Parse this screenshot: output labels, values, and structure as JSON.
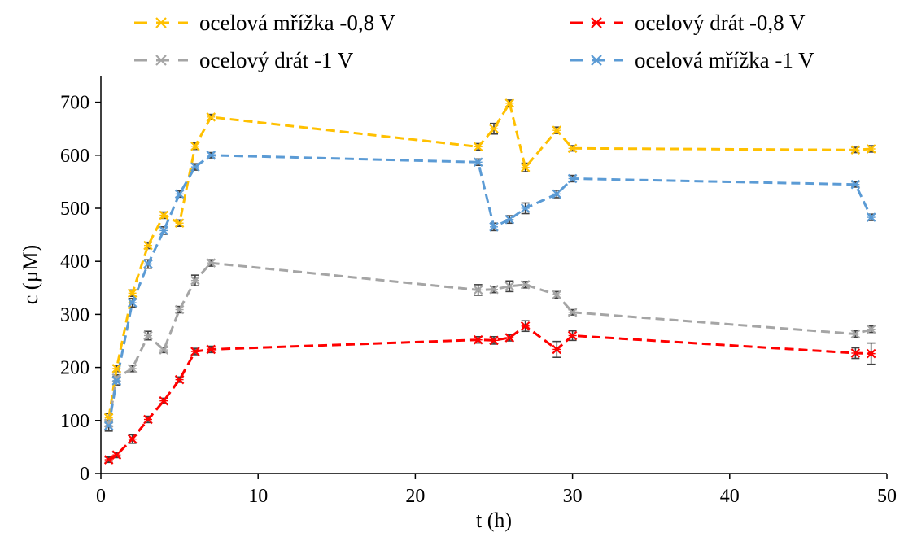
{
  "chart_data": {
    "type": "line",
    "xlabel": "t (h)",
    "ylabel": "c (µM)",
    "xlim": [
      0,
      50
    ],
    "ylim": [
      0,
      750
    ],
    "xticks": [
      0,
      10,
      20,
      30,
      40,
      50
    ],
    "yticks": [
      0,
      100,
      200,
      300,
      400,
      500,
      600,
      700
    ],
    "grid": false,
    "legend_position": "top",
    "series": [
      {
        "name": "ocelová mřížka -0,8 V",
        "color": "#FFC000",
        "points": [
          {
            "x": 0.5,
            "y": 105,
            "err": 8
          },
          {
            "x": 1,
            "y": 198,
            "err": 6
          },
          {
            "x": 2,
            "y": 340,
            "err": 6
          },
          {
            "x": 3,
            "y": 430,
            "err": 6
          },
          {
            "x": 4,
            "y": 487,
            "err": 6
          },
          {
            "x": 5,
            "y": 472,
            "err": 6
          },
          {
            "x": 6,
            "y": 617,
            "err": 6
          },
          {
            "x": 7,
            "y": 672,
            "err": 5
          },
          {
            "x": 24,
            "y": 616,
            "err": 6
          },
          {
            "x": 25,
            "y": 650,
            "err": 10
          },
          {
            "x": 26,
            "y": 698,
            "err": 6
          },
          {
            "x": 27,
            "y": 577,
            "err": 8
          },
          {
            "x": 29,
            "y": 647,
            "err": 6
          },
          {
            "x": 30,
            "y": 613,
            "err": 5
          },
          {
            "x": 48,
            "y": 610,
            "err": 5
          },
          {
            "x": 49,
            "y": 612,
            "err": 6
          }
        ]
      },
      {
        "name": "ocelový drát -0,8 V",
        "color": "#FF0000",
        "points": [
          {
            "x": 0.5,
            "y": 26,
            "err": 5
          },
          {
            "x": 1,
            "y": 35,
            "err": 5
          },
          {
            "x": 2,
            "y": 65,
            "err": 8
          },
          {
            "x": 3,
            "y": 102,
            "err": 6
          },
          {
            "x": 4,
            "y": 137,
            "err": 5
          },
          {
            "x": 5,
            "y": 177,
            "err": 5
          },
          {
            "x": 6,
            "y": 230,
            "err": 6
          },
          {
            "x": 7,
            "y": 234,
            "err": 6
          },
          {
            "x": 24,
            "y": 252,
            "err": 6
          },
          {
            "x": 25,
            "y": 251,
            "err": 7
          },
          {
            "x": 26,
            "y": 256,
            "err": 6
          },
          {
            "x": 27,
            "y": 278,
            "err": 10
          },
          {
            "x": 29,
            "y": 234,
            "err": 15
          },
          {
            "x": 30,
            "y": 260,
            "err": 9
          },
          {
            "x": 48,
            "y": 227,
            "err": 10
          },
          {
            "x": 49,
            "y": 226,
            "err": 20
          }
        ]
      },
      {
        "name": "ocelový drát -1 V",
        "color": "#A5A5A5",
        "points": [
          {
            "x": 0.5,
            "y": 95,
            "err": 6
          },
          {
            "x": 1,
            "y": 180,
            "err": 6
          },
          {
            "x": 2,
            "y": 198,
            "err": 6
          },
          {
            "x": 3,
            "y": 260,
            "err": 8
          },
          {
            "x": 4,
            "y": 233,
            "err": 5
          },
          {
            "x": 5,
            "y": 309,
            "err": 6
          },
          {
            "x": 6,
            "y": 364,
            "err": 10
          },
          {
            "x": 7,
            "y": 397,
            "err": 6
          },
          {
            "x": 24,
            "y": 346,
            "err": 10
          },
          {
            "x": 25,
            "y": 347,
            "err": 6
          },
          {
            "x": 26,
            "y": 353,
            "err": 10
          },
          {
            "x": 27,
            "y": 356,
            "err": 6
          },
          {
            "x": 29,
            "y": 337,
            "err": 6
          },
          {
            "x": 30,
            "y": 304,
            "err": 5
          },
          {
            "x": 48,
            "y": 263,
            "err": 6
          },
          {
            "x": 49,
            "y": 272,
            "err": 6
          }
        ]
      },
      {
        "name": "ocelová mřížka -1 V",
        "color": "#5B9BD5",
        "points": [
          {
            "x": 0.5,
            "y": 90,
            "err": 10
          },
          {
            "x": 1,
            "y": 175,
            "err": 8
          },
          {
            "x": 2,
            "y": 322,
            "err": 8
          },
          {
            "x": 3,
            "y": 395,
            "err": 8
          },
          {
            "x": 4,
            "y": 458,
            "err": 7
          },
          {
            "x": 5,
            "y": 527,
            "err": 6
          },
          {
            "x": 6,
            "y": 578,
            "err": 6
          },
          {
            "x": 7,
            "y": 600,
            "err": 5
          },
          {
            "x": 24,
            "y": 587,
            "err": 6
          },
          {
            "x": 25,
            "y": 465,
            "err": 7
          },
          {
            "x": 26,
            "y": 479,
            "err": 7
          },
          {
            "x": 27,
            "y": 500,
            "err": 10
          },
          {
            "x": 29,
            "y": 527,
            "err": 7
          },
          {
            "x": 30,
            "y": 556,
            "err": 6
          },
          {
            "x": 48,
            "y": 545,
            "err": 5
          },
          {
            "x": 49,
            "y": 483,
            "err": 6
          }
        ]
      }
    ],
    "legend_order": [
      0,
      1,
      2,
      3
    ]
  }
}
